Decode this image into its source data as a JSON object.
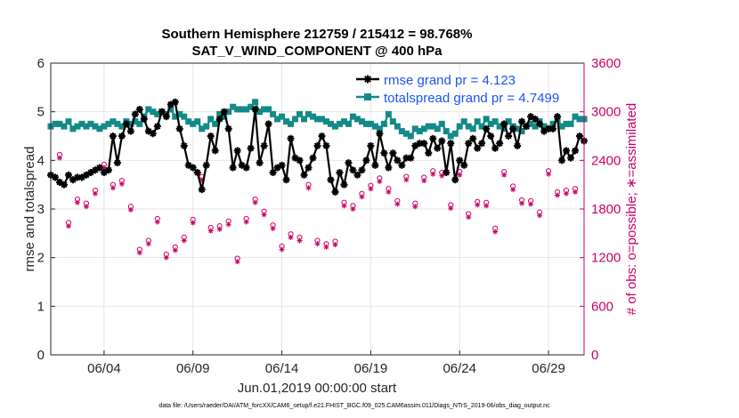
{
  "chart_data": {
    "type": "line",
    "title": "Southern Hemisphere 212759 / 215412 = 98.768%",
    "subtitle": "SAT_V_WIND_COMPONENT @ 400 hPa",
    "xlabel": "Jun.01,2019 00:00:00 start",
    "ylabel": "rmse and totalspread",
    "ylabel_right": "# of obs: o=possible; ∗=assimilated",
    "x_ticks": [
      "06/04",
      "06/09",
      "06/14",
      "06/19",
      "06/24",
      "06/29"
    ],
    "x_tick_days": [
      4,
      9,
      14,
      19,
      24,
      29
    ],
    "xlim": [
      1,
      31
    ],
    "y_ticks": [
      "0",
      "1",
      "2",
      "3",
      "4",
      "5",
      "6"
    ],
    "ylim": [
      0,
      6
    ],
    "y2_ticks": [
      "0",
      "600",
      "1200",
      "1800",
      "2400",
      "3000",
      "3600"
    ],
    "y2lim": [
      0,
      3600
    ],
    "grid": true,
    "legend_position": "top-right",
    "footnote": "data file: /Users/raeder/DAI/ATM_forcXX/CAM6_setup/f.e21.FHIST_BGC.f09_025.CAM6assim.011/Diags_NTrS_2019-06/obs_diag_output.nc",
    "colors": {
      "rmse": "#000000",
      "totalspread": "#138a88",
      "obs": "#cc0066",
      "legend_text": "#1a56f0"
    },
    "series": [
      {
        "name": "rmse grand pr = 4.123",
        "axis": "left",
        "x": [
          1.0,
          1.25,
          1.5,
          1.75,
          2.0,
          2.25,
          2.5,
          2.75,
          3.0,
          3.25,
          3.5,
          3.75,
          4.0,
          4.25,
          4.5,
          4.75,
          5.0,
          5.25,
          5.5,
          5.75,
          6.0,
          6.25,
          6.5,
          6.75,
          7.0,
          7.25,
          7.5,
          7.75,
          8.0,
          8.25,
          8.5,
          8.75,
          9.0,
          9.25,
          9.5,
          9.75,
          10.0,
          10.25,
          10.5,
          10.75,
          11.0,
          11.25,
          11.5,
          11.75,
          12.0,
          12.25,
          12.5,
          12.75,
          13.0,
          13.25,
          13.5,
          13.75,
          14.0,
          14.25,
          14.5,
          14.75,
          15.0,
          15.25,
          15.5,
          15.75,
          16.0,
          16.25,
          16.5,
          16.75,
          17.0,
          17.25,
          17.5,
          17.75,
          18.0,
          18.25,
          18.5,
          18.75,
          19.0,
          19.25,
          19.5,
          19.75,
          20.0,
          20.25,
          20.5,
          20.75,
          21.0,
          21.25,
          21.5,
          21.75,
          22.0,
          22.25,
          22.5,
          22.75,
          23.0,
          23.25,
          23.5,
          23.75,
          24.0,
          24.25,
          24.5,
          24.75,
          25.0,
          25.25,
          25.5,
          25.75,
          26.0,
          26.25,
          26.5,
          26.75,
          27.0,
          27.25,
          27.5,
          27.75,
          28.0,
          28.25,
          28.5,
          28.75,
          29.0,
          29.25,
          29.5,
          29.75,
          30.0,
          30.25,
          30.5,
          30.75,
          31.0
        ],
        "values": [
          3.7,
          3.65,
          3.55,
          3.5,
          3.7,
          3.6,
          3.65,
          3.65,
          3.7,
          3.75,
          3.8,
          3.85,
          3.75,
          3.8,
          4.5,
          3.95,
          4.5,
          4.75,
          4.6,
          4.95,
          5.05,
          4.85,
          4.6,
          4.55,
          4.7,
          5.0,
          4.9,
          5.15,
          5.2,
          4.65,
          4.3,
          3.9,
          3.85,
          3.75,
          3.4,
          3.9,
          4.5,
          4.2,
          4.85,
          5.0,
          4.65,
          3.85,
          4.2,
          3.9,
          3.85,
          4.25,
          5.05,
          3.95,
          4.3,
          4.75,
          3.75,
          3.85,
          3.9,
          3.6,
          4.45,
          4.05,
          4.0,
          3.7,
          3.85,
          4.05,
          4.3,
          4.5,
          4.3,
          3.6,
          3.35,
          3.75,
          3.5,
          3.95,
          3.8,
          3.7,
          3.8,
          4.0,
          4.3,
          3.9,
          4.55,
          4.15,
          3.85,
          4.15,
          4.0,
          3.9,
          4.05,
          4.05,
          4.3,
          4.35,
          4.35,
          4.15,
          4.45,
          4.25,
          4.4,
          3.75,
          4.35,
          3.6,
          4.0,
          3.9,
          4.35,
          4.45,
          4.25,
          4.35,
          4.65,
          4.5,
          4.25,
          4.35,
          4.75,
          4.5,
          4.65,
          4.3,
          4.8,
          4.7,
          4.9,
          4.85,
          4.75,
          4.6,
          4.65,
          4.65,
          4.9,
          4.0,
          4.2,
          4.05,
          4.2,
          4.5,
          4.4
        ]
      },
      {
        "name": "totalspread grand pr = 4.7499",
        "axis": "left",
        "x": [
          1.0,
          1.25,
          1.5,
          1.75,
          2.0,
          2.25,
          2.5,
          2.75,
          3.0,
          3.25,
          3.5,
          3.75,
          4.0,
          4.25,
          4.5,
          4.75,
          5.0,
          5.25,
          5.5,
          5.75,
          6.0,
          6.25,
          6.5,
          6.75,
          7.0,
          7.25,
          7.5,
          7.75,
          8.0,
          8.25,
          8.5,
          8.75,
          9.0,
          9.25,
          9.5,
          9.75,
          10.0,
          10.25,
          10.5,
          10.75,
          11.0,
          11.25,
          11.5,
          11.75,
          12.0,
          12.25,
          12.5,
          12.75,
          13.0,
          13.25,
          13.5,
          13.75,
          14.0,
          14.25,
          14.5,
          14.75,
          15.0,
          15.25,
          15.5,
          15.75,
          16.0,
          16.25,
          16.5,
          16.75,
          17.0,
          17.25,
          17.5,
          17.75,
          18.0,
          18.25,
          18.5,
          18.75,
          19.0,
          19.25,
          19.5,
          19.75,
          20.0,
          20.25,
          20.5,
          20.75,
          21.0,
          21.25,
          21.5,
          21.75,
          22.0,
          22.25,
          22.5,
          22.75,
          23.0,
          23.25,
          23.5,
          23.75,
          24.0,
          24.25,
          24.5,
          24.75,
          25.0,
          25.25,
          25.5,
          25.75,
          26.0,
          26.25,
          26.5,
          26.75,
          27.0,
          27.25,
          27.5,
          27.75,
          28.0,
          28.25,
          28.5,
          28.75,
          29.0,
          29.25,
          29.5,
          29.75,
          30.0,
          30.25,
          30.5,
          30.75,
          31.0
        ],
        "values": [
          4.7,
          4.75,
          4.75,
          4.7,
          4.8,
          4.65,
          4.7,
          4.75,
          4.7,
          4.75,
          4.7,
          4.65,
          4.7,
          4.75,
          4.8,
          4.75,
          4.7,
          4.8,
          4.75,
          4.8,
          4.75,
          4.9,
          5.05,
          5.0,
          4.95,
          5.0,
          4.95,
          5.05,
          4.9,
          4.95,
          4.9,
          4.8,
          4.75,
          4.8,
          4.65,
          4.7,
          4.85,
          4.75,
          4.95,
          4.9,
          5.0,
          5.1,
          5.05,
          5.05,
          5.05,
          5.1,
          5.2,
          5.0,
          5.05,
          5.05,
          4.95,
          4.85,
          4.9,
          4.8,
          4.75,
          4.85,
          4.95,
          4.85,
          4.95,
          4.9,
          4.85,
          4.85,
          4.8,
          4.75,
          4.7,
          4.75,
          4.8,
          4.75,
          4.9,
          4.85,
          4.8,
          4.75,
          4.75,
          4.7,
          4.65,
          4.75,
          4.95,
          4.8,
          4.7,
          4.6,
          4.55,
          4.5,
          4.65,
          4.6,
          4.65,
          4.7,
          4.7,
          4.65,
          4.75,
          4.6,
          4.5,
          4.55,
          4.7,
          4.8,
          4.7,
          4.65,
          4.8,
          4.7,
          4.85,
          4.75,
          4.8,
          4.7,
          4.65,
          4.8,
          4.7,
          4.65,
          4.6,
          4.7,
          4.75,
          4.7,
          4.8,
          4.7,
          4.65,
          4.75,
          4.85,
          4.7,
          4.75,
          4.75,
          4.9,
          4.85,
          4.85
        ]
      },
      {
        "name": "obs possible",
        "axis": "right",
        "marker": "o",
        "x": [
          1.5,
          2.0,
          2.5,
          3.0,
          3.5,
          4.0,
          4.5,
          5.0,
          5.5,
          6.0,
          6.5,
          7.0,
          7.5,
          8.0,
          8.5,
          9.0,
          9.5,
          10.0,
          10.5,
          11.0,
          11.5,
          12.0,
          12.5,
          13.0,
          13.5,
          14.0,
          14.5,
          15.0,
          15.5,
          16.0,
          16.5,
          17.0,
          17.5,
          18.0,
          18.5,
          19.0,
          19.5,
          20.0,
          20.5,
          21.0,
          21.5,
          22.0,
          22.5,
          23.0,
          23.5,
          24.0,
          24.5,
          25.0,
          25.5,
          26.0,
          26.5,
          27.0,
          27.5,
          28.0,
          28.5,
          29.0,
          29.5,
          30.0,
          30.5
        ],
        "values": [
          2470,
          1630,
          1920,
          1870,
          2030,
          2350,
          2100,
          2150,
          1830,
          1300,
          1410,
          1680,
          1240,
          1330,
          1450,
          1670,
          2200,
          1570,
          1590,
          1650,
          1190,
          1680,
          1920,
          1770,
          1600,
          1340,
          1490,
          1450,
          2100,
          1410,
          1370,
          1400,
          1880,
          1840,
          1990,
          2090,
          2180,
          2050,
          1900,
          2200,
          1870,
          2190,
          2270,
          2250,
          1850,
          2260,
          1740,
          1890,
          1880,
          1560,
          2260,
          2080,
          1910,
          1900,
          1760,
          2270,
          2010,
          2030,
          2050
        ]
      },
      {
        "name": "obs assimilated",
        "axis": "right",
        "marker": "*",
        "x": [
          1.5,
          2.0,
          2.5,
          3.0,
          3.5,
          4.0,
          4.5,
          5.0,
          5.5,
          6.0,
          6.5,
          7.0,
          7.5,
          8.0,
          8.5,
          9.0,
          9.5,
          10.0,
          10.5,
          11.0,
          11.5,
          12.0,
          12.5,
          13.0,
          13.5,
          14.0,
          14.5,
          15.0,
          15.5,
          16.0,
          16.5,
          17.0,
          17.5,
          18.0,
          18.5,
          19.0,
          19.5,
          20.0,
          20.5,
          21.0,
          21.5,
          22.0,
          22.5,
          23.0,
          23.5,
          24.0,
          24.5,
          25.0,
          25.5,
          26.0,
          26.5,
          27.0,
          27.5,
          28.0,
          28.5,
          29.0,
          29.5,
          30.0,
          30.5
        ],
        "values": [
          2430,
          1590,
          1880,
          1830,
          1990,
          2310,
          2060,
          2110,
          1790,
          1260,
          1370,
          1640,
          1200,
          1290,
          1410,
          1630,
          2160,
          1530,
          1550,
          1610,
          1150,
          1640,
          1880,
          1730,
          1560,
          1300,
          1450,
          1410,
          2060,
          1370,
          1330,
          1360,
          1840,
          1800,
          1950,
          2050,
          2140,
          2010,
          1860,
          2160,
          1830,
          2150,
          2230,
          2210,
          1810,
          2220,
          1700,
          1850,
          1840,
          1520,
          2220,
          2040,
          1870,
          1860,
          1720,
          2230,
          1970,
          1990,
          2010
        ]
      }
    ]
  }
}
